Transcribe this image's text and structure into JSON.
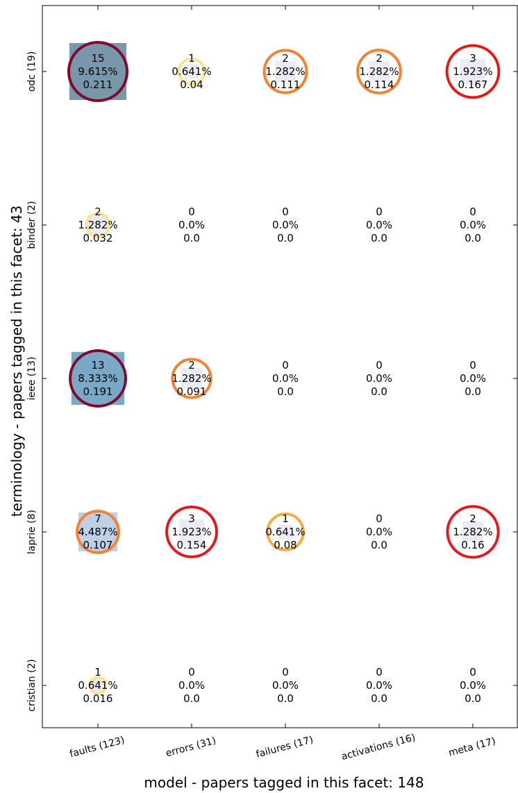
{
  "chart_data": {
    "type": "heatmap",
    "xlabel": "model  -  papers tagged in this facet: 148",
    "ylabel": "terminology  -  papers tagged in this facet: 43",
    "x_categories": [
      "faults (123)",
      "errors (31)",
      "failures (17)",
      "activations (16)",
      "meta (17)"
    ],
    "y_categories": [
      "odc (19)",
      "binder (2)",
      "ieee (13)",
      "laprie (8)",
      "cristian (2)"
    ],
    "cells": [
      [
        {
          "count": "15",
          "percent": "9.615%",
          "score": "0.211"
        },
        {
          "count": "1",
          "percent": "0.641%",
          "score": "0.04"
        },
        {
          "count": "2",
          "percent": "1.282%",
          "score": "0.111"
        },
        {
          "count": "2",
          "percent": "1.282%",
          "score": "0.114"
        },
        {
          "count": "3",
          "percent": "1.923%",
          "score": "0.167"
        }
      ],
      [
        {
          "count": "2",
          "percent": "1.282%",
          "score": "0.032"
        },
        {
          "count": "0",
          "percent": "0.0%",
          "score": "0.0"
        },
        {
          "count": "0",
          "percent": "0.0%",
          "score": "0.0"
        },
        {
          "count": "0",
          "percent": "0.0%",
          "score": "0.0"
        },
        {
          "count": "0",
          "percent": "0.0%",
          "score": "0.0"
        }
      ],
      [
        {
          "count": "13",
          "percent": "8.333%",
          "score": "0.191"
        },
        {
          "count": "2",
          "percent": "1.282%",
          "score": "0.091"
        },
        {
          "count": "0",
          "percent": "0.0%",
          "score": "0.0"
        },
        {
          "count": "0",
          "percent": "0.0%",
          "score": "0.0"
        },
        {
          "count": "0",
          "percent": "0.0%",
          "score": "0.0"
        }
      ],
      [
        {
          "count": "7",
          "percent": "4.487%",
          "score": "0.107"
        },
        {
          "count": "3",
          "percent": "1.923%",
          "score": "0.154"
        },
        {
          "count": "1",
          "percent": "0.641%",
          "score": "0.08"
        },
        {
          "count": "0",
          "percent": "0.0%",
          "score": "0.0"
        },
        {
          "count": "2",
          "percent": "1.282%",
          "score": "0.16"
        }
      ],
      [
        {
          "count": "1",
          "percent": "0.641%",
          "score": "0.016"
        },
        {
          "count": "0",
          "percent": "0.0%",
          "score": "0.0"
        },
        {
          "count": "0",
          "percent": "0.0%",
          "score": "0.0"
        },
        {
          "count": "0",
          "percent": "0.0%",
          "score": "0.0"
        },
        {
          "count": "0",
          "percent": "0.0%",
          "score": "0.0"
        }
      ]
    ],
    "encoding": {
      "square_size_by": "count",
      "circle_size_by": "score",
      "circle_color_by": "score"
    },
    "colors": {
      "circle_scale": [
        "#fed976",
        "#feb24c",
        "#fd8d3c",
        "#f03b20",
        "#e31a1c",
        "#800026"
      ],
      "square_scale": [
        "#f1eef6",
        "#bdc9e1",
        "#74a9cf",
        "#7897aa"
      ],
      "axes": "#000000"
    },
    "grid": false
  }
}
